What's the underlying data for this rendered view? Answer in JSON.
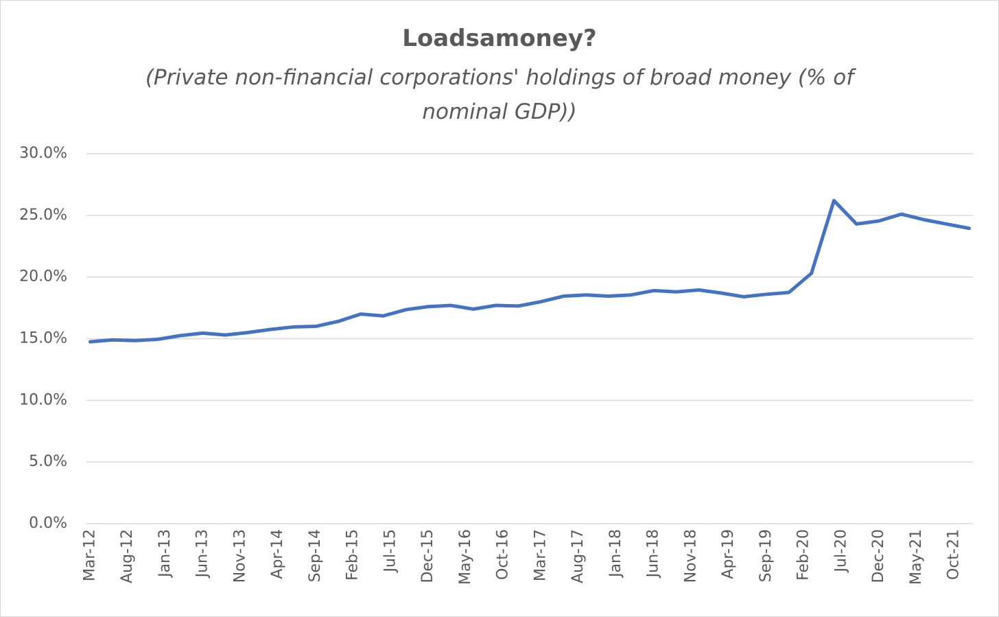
{
  "chart_data": {
    "type": "line",
    "title": "Loadsamoney?",
    "subtitle": "(Private non-financial corporations' holdings of broad money (% of nominal GDP))",
    "x": [
      "2012-03",
      "2012-06",
      "2012-09",
      "2012-12",
      "2013-03",
      "2013-06",
      "2013-09",
      "2013-12",
      "2014-03",
      "2014-06",
      "2014-09",
      "2014-12",
      "2015-03",
      "2015-06",
      "2015-09",
      "2015-12",
      "2016-03",
      "2016-06",
      "2016-09",
      "2016-12",
      "2017-03",
      "2017-06",
      "2017-09",
      "2017-12",
      "2018-03",
      "2018-06",
      "2018-09",
      "2018-12",
      "2019-03",
      "2019-06",
      "2019-09",
      "2019-12",
      "2020-03",
      "2020-06",
      "2020-09",
      "2020-12",
      "2021-03",
      "2021-06",
      "2021-09",
      "2021-12"
    ],
    "series": [
      {
        "color": "#4472c4",
        "values": [
          14.75,
          14.9,
          14.85,
          14.95,
          15.25,
          15.45,
          15.3,
          15.5,
          15.75,
          15.95,
          16.0,
          16.4,
          17.0,
          16.85,
          17.35,
          17.6,
          17.7,
          17.4,
          17.7,
          17.65,
          18.0,
          18.45,
          18.55,
          18.45,
          18.55,
          18.9,
          18.8,
          18.95,
          18.7,
          18.4,
          18.6,
          18.75,
          20.3,
          26.2,
          24.3,
          24.55,
          25.1,
          24.65,
          24.3,
          23.95
        ]
      }
    ],
    "xlim": [
      "2012-03",
      "2021-12"
    ],
    "xticks": [
      {
        "value": "2012-03",
        "label": "Mar-12"
      },
      {
        "value": "2012-08",
        "label": "Aug-12"
      },
      {
        "value": "2013-01",
        "label": "Jan-13"
      },
      {
        "value": "2013-06",
        "label": "Jun-13"
      },
      {
        "value": "2013-11",
        "label": "Nov-13"
      },
      {
        "value": "2014-04",
        "label": "Apr-14"
      },
      {
        "value": "2014-09",
        "label": "Sep-14"
      },
      {
        "value": "2015-02",
        "label": "Feb-15"
      },
      {
        "value": "2015-07",
        "label": "Jul-15"
      },
      {
        "value": "2015-12",
        "label": "Dec-15"
      },
      {
        "value": "2016-05",
        "label": "May-16"
      },
      {
        "value": "2016-10",
        "label": "Oct-16"
      },
      {
        "value": "2017-03",
        "label": "Mar-17"
      },
      {
        "value": "2017-08",
        "label": "Aug-17"
      },
      {
        "value": "2018-01",
        "label": "Jan-18"
      },
      {
        "value": "2018-06",
        "label": "Jun-18"
      },
      {
        "value": "2018-11",
        "label": "Nov-18"
      },
      {
        "value": "2019-04",
        "label": "Apr-19"
      },
      {
        "value": "2019-09",
        "label": "Sep-19"
      },
      {
        "value": "2020-02",
        "label": "Feb-20"
      },
      {
        "value": "2020-07",
        "label": "Jul-20"
      },
      {
        "value": "2020-12",
        "label": "Dec-20"
      },
      {
        "value": "2021-05",
        "label": "May-21"
      },
      {
        "value": "2021-10",
        "label": "Oct-21"
      }
    ],
    "ylim": [
      0,
      30
    ],
    "yticks": [
      {
        "value": 0,
        "label": "0.0%"
      },
      {
        "value": 5,
        "label": "5.0%"
      },
      {
        "value": 10,
        "label": "10.0%"
      },
      {
        "value": 15,
        "label": "15.0%"
      },
      {
        "value": 20,
        "label": "20.0%"
      },
      {
        "value": 25,
        "label": "25.0%"
      },
      {
        "value": 30,
        "label": "30.0%"
      }
    ],
    "grid": true
  }
}
